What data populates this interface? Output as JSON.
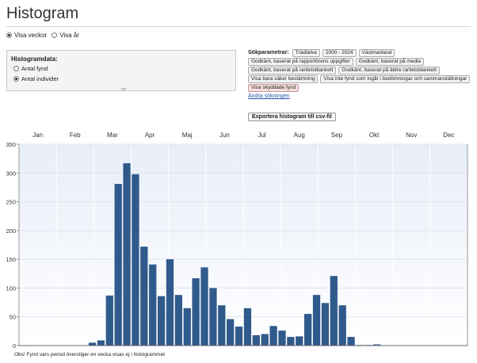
{
  "page": {
    "title": "Histogram",
    "footnote": "Obs! Fynd vars period överstiger en vecka visas ej i histogrammet"
  },
  "mode_options": [
    {
      "label": "Visa veckor",
      "selected": true
    },
    {
      "label": "Visa år",
      "selected": false
    }
  ],
  "histogram_panel": {
    "heading": "Histogramdata:",
    "options": [
      {
        "label": "Antal fynd",
        "selected": false
      },
      {
        "label": "Antal individer",
        "selected": true
      }
    ]
  },
  "search": {
    "label": "Sökparametrar:",
    "chips": [
      {
        "text": "Trädlärka",
        "highlight": false
      },
      {
        "text": "2000 - 2024",
        "highlight": false
      },
      {
        "text": "Västmanland",
        "highlight": false
      },
      {
        "text": "Godkänt, baserat på rapportörens uppgifter",
        "highlight": false
      },
      {
        "text": "Godkänt, baserat på media",
        "highlight": false
      },
      {
        "text": "Godkänt, baserat på raritetsblankett",
        "highlight": false
      },
      {
        "text": "Godkänt, baserat på äldre raritetsblankett",
        "highlight": false
      },
      {
        "text": "Visa bara säker bestämning",
        "highlight": false
      },
      {
        "text": "Visa inte fynd som ingår i bedömningar och sammanställningar",
        "highlight": false
      },
      {
        "text": "Visa skyddade fynd",
        "highlight": true
      }
    ],
    "other_searches_link": "Ändra sökningen",
    "export_button": "Exportera histogram till csv-fil"
  },
  "colors": {
    "bar": "#2f5a8c",
    "plot_bg_top": "#e8eef8",
    "plot_bg_bottom": "#ffffff",
    "gridline": "#ffffff"
  },
  "chart_data": {
    "type": "bar",
    "months": [
      "Jan",
      "Feb",
      "Mar",
      "Apr",
      "Maj",
      "Jun",
      "Jul",
      "Aug",
      "Sep",
      "Okt",
      "Nov",
      "Dec"
    ],
    "weeks": [
      1,
      2,
      3,
      4,
      5,
      6,
      7,
      8,
      9,
      10,
      11,
      12,
      13,
      14,
      15,
      16,
      17,
      18,
      19,
      20,
      21,
      22,
      23,
      24,
      25,
      26,
      27,
      28,
      29,
      30,
      31,
      32,
      33,
      34,
      35,
      36,
      37,
      38,
      39,
      40,
      41,
      42,
      43,
      44,
      45,
      46,
      47,
      48,
      49,
      50,
      51,
      52
    ],
    "values": [
      0,
      0,
      0,
      0,
      0,
      0,
      0,
      0,
      5,
      9,
      87,
      281,
      317,
      298,
      172,
      141,
      86,
      150,
      88,
      65,
      117,
      136,
      100,
      70,
      46,
      33,
      65,
      18,
      20,
      34,
      26,
      15,
      16,
      55,
      88,
      74,
      121,
      70,
      15,
      1,
      1,
      2,
      0,
      0,
      0,
      0,
      0,
      0,
      0,
      0,
      0,
      0
    ],
    "y_ticks": [
      0,
      50,
      100,
      150,
      200,
      250,
      300,
      350
    ],
    "ylim": [
      0,
      350
    ],
    "grid": true,
    "legend": "none"
  }
}
